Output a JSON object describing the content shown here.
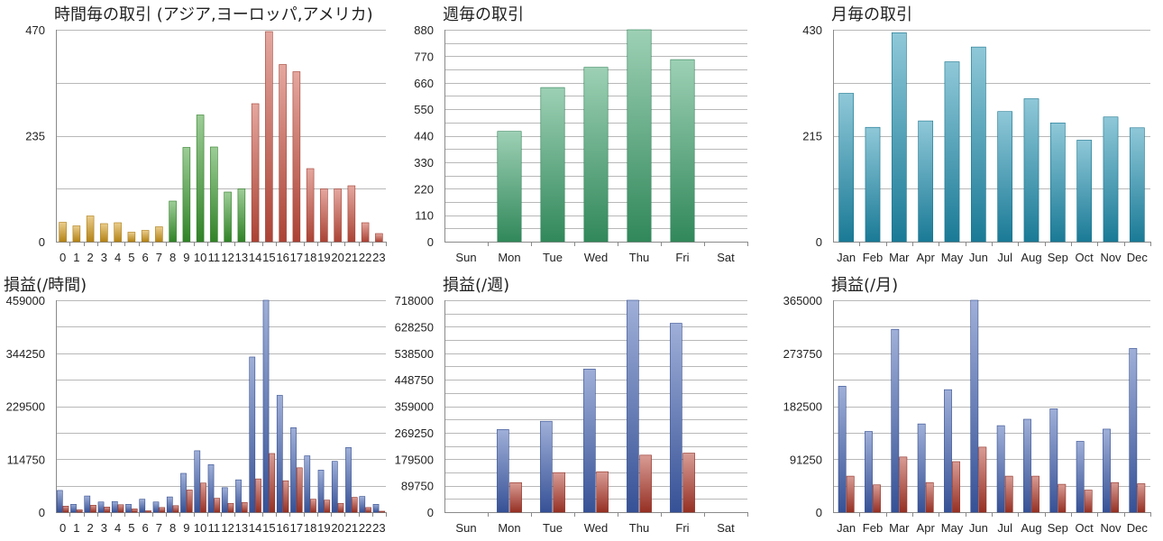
{
  "chart_data": [
    {
      "type": "bar",
      "title": "時間毎の取引 (アジア,ヨーロッパ,アメリカ)",
      "categories": [
        "0",
        "1",
        "2",
        "3",
        "4",
        "5",
        "6",
        "7",
        "8",
        "9",
        "10",
        "11",
        "12",
        "13",
        "14",
        "15",
        "16",
        "17",
        "18",
        "19",
        "20",
        "21",
        "22",
        "23"
      ],
      "ylim": [
        0,
        470
      ],
      "yticks": [
        "0",
        "235",
        "470"
      ],
      "grid": true,
      "series": [
        {
          "values": [
            43,
            35,
            57,
            40,
            42,
            21,
            25,
            33,
            90,
            209,
            281,
            210,
            110,
            117,
            306,
            466,
            393,
            377,
            162,
            117,
            117,
            124,
            42,
            18
          ]
        }
      ],
      "colors": {
        "asia": "#d49a1a",
        "europe": "#3a9a2e",
        "america": "#c94f3e"
      }
    },
    {
      "type": "bar",
      "title": "週毎の取引",
      "categories": [
        "Sun",
        "Mon",
        "Tue",
        "Wed",
        "Thu",
        "Fri",
        "Sat"
      ],
      "ylim": [
        0,
        880
      ],
      "yticks": [
        "0",
        "110",
        "220",
        "330",
        "440",
        "550",
        "660",
        "770",
        "880"
      ],
      "grid": true,
      "series": [
        {
          "values": [
            0,
            458,
            640,
            724,
            880,
            756,
            0
          ]
        }
      ],
      "colors": {
        "bar": "#3aa06a"
      }
    },
    {
      "type": "bar",
      "title": "月毎の取引",
      "categories": [
        "Jan",
        "Feb",
        "Mar",
        "Apr",
        "May",
        "Jun",
        "Jul",
        "Aug",
        "Sep",
        "Oct",
        "Nov",
        "Dec"
      ],
      "ylim": [
        0,
        430
      ],
      "yticks": [
        "0",
        "215",
        "430"
      ],
      "grid": true,
      "series": [
        {
          "values": [
            301,
            232,
            424,
            245,
            365,
            395,
            264,
            290,
            241,
            206,
            253,
            231
          ]
        }
      ],
      "colors": {
        "bar": "#1e90b0"
      }
    },
    {
      "type": "bar",
      "title": "損益(/時間)",
      "categories": [
        "0",
        "1",
        "2",
        "3",
        "4",
        "5",
        "6",
        "7",
        "8",
        "9",
        "10",
        "11",
        "12",
        "13",
        "14",
        "15",
        "16",
        "17",
        "18",
        "19",
        "20",
        "21",
        "22",
        "23"
      ],
      "ylim": [
        0,
        459000
      ],
      "yticks": [
        "0",
        "114750",
        "229500",
        "344250",
        "459000"
      ],
      "grid": true,
      "series": [
        {
          "values": [
            47000,
            17000,
            35000,
            22000,
            23000,
            17000,
            28000,
            22000,
            33000,
            84000,
            133000,
            103000,
            53000,
            70000,
            336000,
            459000,
            253000,
            183000,
            122000,
            91000,
            110000,
            140000,
            34000,
            17000
          ]
        },
        {
          "values": [
            13000,
            5000,
            15000,
            11000,
            16000,
            7000,
            3000,
            10000,
            14000,
            48000,
            63000,
            30000,
            19000,
            21000,
            72000,
            127000,
            68000,
            96000,
            28000,
            26000,
            19000,
            32000,
            10000,
            2000
          ]
        }
      ],
      "colors": {
        "positive": "#3f5fb0",
        "negative": "#b0382a"
      }
    },
    {
      "type": "bar",
      "title": "損益(/週)",
      "categories": [
        "Sun",
        "Mon",
        "Tue",
        "Wed",
        "Thu",
        "Fri",
        "Sat"
      ],
      "ylim": [
        0,
        718000
      ],
      "yticks": [
        "0",
        "89750",
        "179500",
        "269250",
        "359000",
        "448750",
        "538500",
        "628250",
        "718000"
      ],
      "grid": true,
      "series": [
        {
          "values": [
            0,
            280000,
            308000,
            485000,
            718000,
            640000,
            0
          ]
        },
        {
          "values": [
            0,
            100000,
            134000,
            137000,
            193000,
            200000,
            0
          ]
        }
      ],
      "colors": {
        "positive": "#3f5fb0",
        "negative": "#b0382a"
      }
    },
    {
      "type": "bar",
      "title": "損益(/月)",
      "categories": [
        "Jan",
        "Feb",
        "Mar",
        "Apr",
        "May",
        "Jun",
        "Jul",
        "Aug",
        "Sep",
        "Oct",
        "Nov",
        "Dec"
      ],
      "ylim": [
        0,
        365000
      ],
      "yticks": [
        "0",
        "91250",
        "182500",
        "273750",
        "365000"
      ],
      "grid": true,
      "series": [
        {
          "values": [
            217000,
            139000,
            315000,
            152000,
            211000,
            365000,
            149000,
            160000,
            178000,
            122000,
            143000,
            282000
          ]
        },
        {
          "values": [
            62000,
            47000,
            95000,
            51000,
            87000,
            112000,
            62000,
            62000,
            48000,
            38000,
            51000,
            49000
          ]
        }
      ],
      "colors": {
        "positive": "#3f5fb0",
        "negative": "#b0382a"
      }
    }
  ]
}
